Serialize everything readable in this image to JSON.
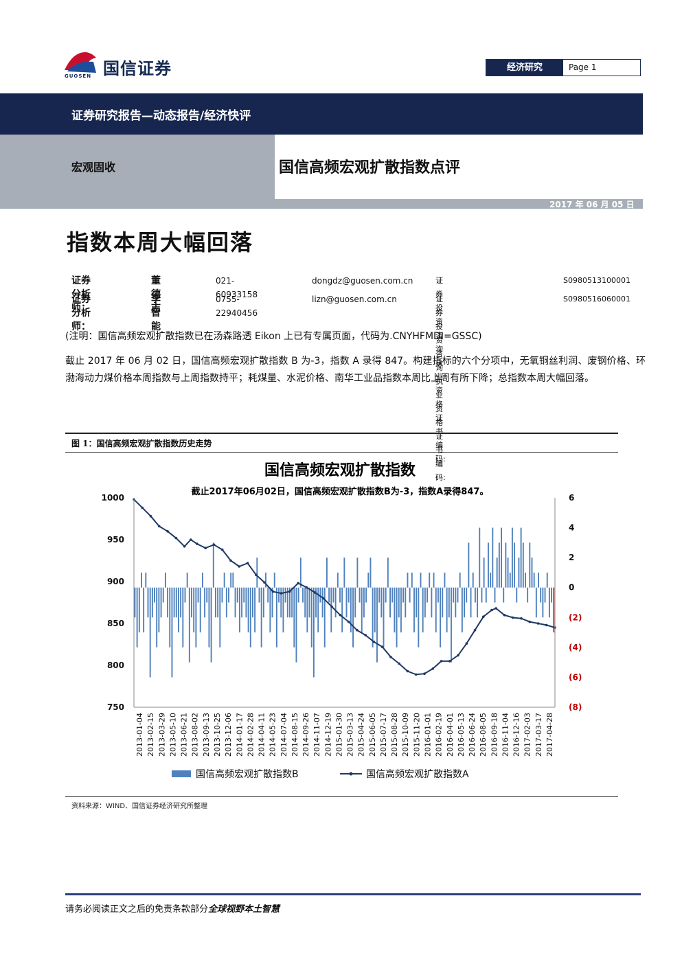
{
  "header": {
    "company": "国信证券",
    "company_en": "GUOSEN",
    "department": "经济研究",
    "page_label": "Page",
    "page_number": "1",
    "report_type": "证券研究报告—动态报告/经济快评",
    "category": "宏观固收",
    "report_title": "国信高频宏观扩散指数点评",
    "date": "2017 年 06 月 05 日"
  },
  "headline": "指数本周大幅回落",
  "analysts": [
    {
      "label": "证券分析师：",
      "name": "董德志",
      "phone": "021-60933158",
      "email": "dongdz@guosen.com.cn",
      "cert_label": "证券投资咨询执业资格证书编码:",
      "cert": "S0980513100001"
    },
    {
      "label": "证券分析师：",
      "name": "李智能",
      "phone": "0755-22940456",
      "email": "lizn@guosen.com.cn",
      "cert_label": "证券投资咨询执业资格证书编码:",
      "cert": "S0980516060001"
    }
  ],
  "note": "(注明：国信高频宏观扩散指数已在汤森路透 Eikon 上已有专属页面，代码为.CNYHFMDI=GSSC)",
  "paragraph": "截止 2017 年 06 月 02 日，国信高频宏观扩散指数 B 为-3，指数 A 录得 847。构建指标的六个分项中，无氧铜丝利润、废钢价格、环渤海动力煤价格本周指数与上周指数持平；耗煤量、水泥价格、南华工业品指数本周比上周有所下降；总指数本周大幅回落。",
  "figure": {
    "caption": "图 1：国信高频宏观扩散指数历史走势",
    "source": "资料来源：WIND、国信证券经济研究所整理"
  },
  "chart_data": {
    "type": "bar+line",
    "title": "国信高频宏观扩散指数",
    "subtitle": "截止2017年06月02日，国信高频宏观扩散指数B为-3，指数A录得847。",
    "y_left": {
      "ticks": [
        "1000",
        "950",
        "900",
        "850",
        "800",
        "750"
      ],
      "range": [
        750,
        1000
      ]
    },
    "y_right": {
      "ticks": [
        "6",
        "4",
        "2",
        "0",
        "(2)",
        "(4)",
        "(6)",
        "(8)"
      ],
      "range": [
        -8,
        6
      ]
    },
    "x_ticks": [
      "2013-01-04",
      "2013-02-15",
      "2013-03-29",
      "2013-05-10",
      "2013-06-21",
      "2013-08-02",
      "2013-09-13",
      "2013-10-25",
      "2013-12-06",
      "2014-01-17",
      "2014-02-28",
      "2014-04-11",
      "2014-05-23",
      "2014-07-04",
      "2014-08-15",
      "2014-09-26",
      "2014-11-07",
      "2014-12-19",
      "2015-01-30",
      "2015-03-13",
      "2015-04-24",
      "2015-06-05",
      "2015-07-17",
      "2015-08-28",
      "2015-10-09",
      "2015-11-20",
      "2016-01-01",
      "2016-02-19",
      "2016-04-01",
      "2016-05-13",
      "2016-06-24",
      "2016-08-05",
      "2016-09-18",
      "2016-11-04",
      "2016-12-16",
      "2017-02-03",
      "2017-03-17",
      "2017-04-28"
    ],
    "series": [
      {
        "name": "国信高频宏观扩散指数B",
        "axis": "right",
        "kind": "bar",
        "color": "#4f81bd",
        "values": [
          -2,
          -4,
          -3,
          1,
          -3,
          1,
          -2,
          -6,
          -2,
          -1,
          -4,
          -3,
          -2,
          -1,
          1,
          -2,
          -4,
          -6,
          -2,
          -2,
          -3,
          -2,
          -4,
          -1,
          1,
          -5,
          -2,
          -3,
          -4,
          -1,
          -3,
          1,
          -2,
          -1,
          -4,
          -5,
          3,
          -2,
          -2,
          -4,
          -1,
          1,
          -2,
          -1,
          1,
          1,
          -2,
          -1,
          -3,
          -2,
          -1,
          -2,
          -3,
          -4,
          -2,
          -3,
          2,
          -1,
          -4,
          -2,
          1,
          -1,
          -3,
          -2,
          1,
          -4,
          -1,
          -2,
          -3,
          -1,
          -2,
          -2,
          -2,
          -4,
          -5,
          -1,
          2,
          -1,
          -2,
          -3,
          -2,
          -4,
          -6,
          -2,
          -3,
          -1,
          -2,
          -4,
          2,
          -1,
          -3,
          -1,
          -2,
          1,
          -1,
          -3,
          2,
          -2,
          -1,
          -3,
          -4,
          -2,
          2,
          -1,
          -3,
          -2,
          -1,
          1,
          2,
          -4,
          -3,
          -5,
          -1,
          -2,
          -4,
          -1,
          2,
          -2,
          -1,
          -3,
          -4,
          -2,
          -3,
          -1,
          -2,
          1,
          -1,
          1,
          -3,
          -2,
          -4,
          1,
          -3,
          -2,
          -1,
          1,
          -2,
          1,
          -3,
          -1,
          -4,
          -2,
          1,
          -3,
          -2,
          -5,
          -1,
          -2,
          -1,
          1,
          -3,
          -2,
          -1,
          3,
          -2,
          1,
          -1,
          -2,
          4,
          -1,
          2,
          -1,
          3,
          1,
          4,
          -1,
          2,
          3,
          4,
          -1,
          3,
          2,
          1,
          4,
          3,
          -1,
          2,
          4,
          3,
          1,
          -1,
          3,
          2,
          1,
          -2,
          1,
          -1,
          -2,
          -1,
          1,
          -2,
          -1,
          -3
        ]
      },
      {
        "name": "国信高频宏观扩散指数A",
        "axis": "left",
        "kind": "line",
        "color": "#1f3864",
        "points": [
          [
            0,
            998
          ],
          [
            0.02,
            988
          ],
          [
            0.04,
            978
          ],
          [
            0.06,
            966
          ],
          [
            0.08,
            960
          ],
          [
            0.1,
            952
          ],
          [
            0.12,
            942
          ],
          [
            0.135,
            950
          ],
          [
            0.15,
            945
          ],
          [
            0.17,
            940
          ],
          [
            0.19,
            944
          ],
          [
            0.21,
            938
          ],
          [
            0.23,
            925
          ],
          [
            0.25,
            918
          ],
          [
            0.27,
            922
          ],
          [
            0.29,
            908
          ],
          [
            0.31,
            899
          ],
          [
            0.33,
            888
          ],
          [
            0.35,
            886
          ],
          [
            0.37,
            888
          ],
          [
            0.39,
            898
          ],
          [
            0.41,
            893
          ],
          [
            0.43,
            887
          ],
          [
            0.45,
            880
          ],
          [
            0.47,
            870
          ],
          [
            0.49,
            860
          ],
          [
            0.51,
            852
          ],
          [
            0.53,
            842
          ],
          [
            0.55,
            836
          ],
          [
            0.57,
            828
          ],
          [
            0.59,
            822
          ],
          [
            0.61,
            810
          ],
          [
            0.63,
            802
          ],
          [
            0.65,
            793
          ],
          [
            0.67,
            789
          ],
          [
            0.69,
            790
          ],
          [
            0.71,
            796
          ],
          [
            0.73,
            805
          ],
          [
            0.75,
            805
          ],
          [
            0.77,
            812
          ],
          [
            0.79,
            826
          ],
          [
            0.81,
            842
          ],
          [
            0.83,
            858
          ],
          [
            0.85,
            866
          ],
          [
            0.86,
            868
          ],
          [
            0.88,
            860
          ],
          [
            0.9,
            857
          ],
          [
            0.92,
            856
          ],
          [
            0.94,
            852
          ],
          [
            0.96,
            850
          ],
          [
            0.98,
            848
          ],
          [
            1,
            845
          ]
        ]
      }
    ]
  },
  "footer": {
    "disclaimer": "请务必阅读正文之后的免责条款部分",
    "slogan": "全球视野本土智慧"
  }
}
